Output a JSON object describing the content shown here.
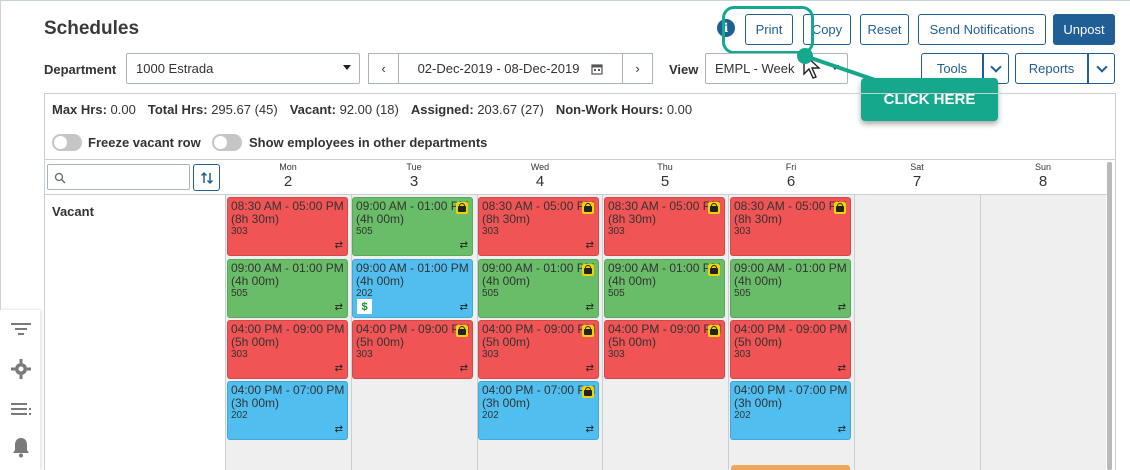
{
  "header": {
    "title": "Schedules",
    "info_icon": "i",
    "buttons": {
      "print": "Print",
      "copy": "Copy",
      "reset": "Reset",
      "send_notifications": "Send Notifications",
      "unpost": "Unpost"
    }
  },
  "callout": {
    "text": "CLICK HERE"
  },
  "filters": {
    "department_label": "Department",
    "department_value": "1000 Estrada",
    "prev": "‹",
    "next": "›",
    "date_range": "02-Dec-2019 - 08-Dec-2019",
    "view_label": "View",
    "view_value": "EMPL - Week",
    "tools_label": "Tools",
    "reports_label": "Reports"
  },
  "stats": {
    "max_hrs_label": "Max Hrs:",
    "max_hrs": "0.00",
    "total_hrs_label": "Total Hrs:",
    "total_hrs": "295.67 (45)",
    "vacant_label": "Vacant:",
    "vacant": "92.00 (18)",
    "assigned_label": "Assigned:",
    "assigned": "203.67 (27)",
    "non_work_label": "Non-Work Hours:",
    "non_work": "0.00"
  },
  "toggles": {
    "freeze": "Freeze vacant row",
    "show_other": "Show employees in other departments"
  },
  "days": [
    {
      "name": "Mon",
      "date": "2"
    },
    {
      "name": "Tue",
      "date": "3"
    },
    {
      "name": "Wed",
      "date": "4"
    },
    {
      "name": "Thu",
      "date": "5"
    },
    {
      "name": "Fri",
      "date": "6"
    },
    {
      "name": "Sat",
      "date": "7"
    },
    {
      "name": "Sun",
      "date": "8"
    }
  ],
  "row_label": "Vacant",
  "shifts": {
    "s1": {
      "time": "08:30 AM - 05:00 PM (8h 30m)",
      "code": "303"
    },
    "s2": {
      "time": "09:00 AM - 01:00 PM (4h 00m)",
      "code": "505"
    },
    "s3": {
      "time": "04:00 PM - 09:00 PM (5h 00m)",
      "code": "303"
    },
    "s4": {
      "time": "04:00 PM - 07:00 PM (3h 00m)",
      "code": "202"
    },
    "s5": {
      "time": "09:00 AM - 01:00 PM (4h 00m)",
      "code": "202"
    }
  },
  "colors": {
    "red": "#f05454",
    "green": "#69bd69",
    "blue": "#50bff0",
    "accent": "#1f5f95",
    "callout": "#16a88d"
  }
}
